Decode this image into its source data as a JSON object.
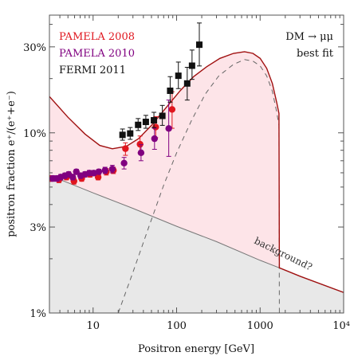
{
  "chart_data": {
    "type": "scatter",
    "xlabel": "Positron energy [GeV]",
    "ylabel": "positron fraction  e⁺/(e⁺+e⁻)",
    "x_scale": "log",
    "y_scale": "log",
    "xlim": [
      3,
      10000
    ],
    "ylim": [
      0.01,
      0.45
    ],
    "x_ticks": [
      {
        "value": 10,
        "label": "10"
      },
      {
        "value": 100,
        "label": "100"
      },
      {
        "value": 1000,
        "label": "1000"
      },
      {
        "value": 10000,
        "label": "10⁴"
      }
    ],
    "y_ticks": [
      {
        "value": 0.01,
        "label": "1%"
      },
      {
        "value": 0.03,
        "label": "3%"
      },
      {
        "value": 0.1,
        "label": "10%"
      },
      {
        "value": 0.3,
        "label": "30%"
      }
    ],
    "grid": false,
    "legend_position": "top-left",
    "legend": [
      {
        "label": "PAMELA 2008",
        "color": "#e0161e"
      },
      {
        "label": "PAMELA 2010",
        "color": "#800080"
      },
      {
        "label": "FERMI 2011",
        "color": "#111111"
      }
    ],
    "annotations": {
      "model_line1": "DM → μμ",
      "model_line2": "best fit",
      "background_label": "background?"
    },
    "colors": {
      "pamela2008": "#e0161e",
      "pamela2010": "#800080",
      "fermi": "#111111",
      "total_curve": "#a01010",
      "signal_fill": "#fde4e8",
      "background_fill": "#e8e8e8",
      "background_line": "#777777"
    },
    "series": [
      {
        "name": "PAMELA 2008",
        "points": [
          {
            "x": 3.1,
            "y": 0.0558,
            "lo": 0.0538,
            "hi": 0.0578
          },
          {
            "x": 3.9,
            "y": 0.0549,
            "lo": 0.0529,
            "hi": 0.0569
          },
          {
            "x": 4.8,
            "y": 0.0568,
            "lo": 0.0548,
            "hi": 0.0588
          },
          {
            "x": 5.9,
            "y": 0.0539,
            "lo": 0.0519,
            "hi": 0.0559
          },
          {
            "x": 7.3,
            "y": 0.0558,
            "lo": 0.0538,
            "hi": 0.0578
          },
          {
            "x": 9.2,
            "y": 0.0588,
            "lo": 0.0568,
            "hi": 0.0608
          },
          {
            "x": 11.5,
            "y": 0.0568,
            "lo": 0.0548,
            "hi": 0.0588
          },
          {
            "x": 14.4,
            "y": 0.0608,
            "lo": 0.0583,
            "hi": 0.0633
          },
          {
            "x": 17.5,
            "y": 0.0619,
            "lo": 0.0594,
            "hi": 0.0644
          },
          {
            "x": 24.4,
            "y": 0.0817,
            "lo": 0.075,
            "hi": 0.088
          },
          {
            "x": 36.5,
            "y": 0.0864,
            "lo": 0.0775,
            "hi": 0.096
          },
          {
            "x": 56.2,
            "y": 0.1076,
            "lo": 0.094,
            "hi": 0.123
          },
          {
            "x": 88.3,
            "y": 0.1348,
            "lo": 0.106,
            "hi": 0.169
          }
        ]
      },
      {
        "name": "PAMELA 2010",
        "points": [
          {
            "x": 3.3,
            "y": 0.0558,
            "lo": 0.0538,
            "hi": 0.0578
          },
          {
            "x": 3.7,
            "y": 0.0558,
            "lo": 0.0538,
            "hi": 0.0578
          },
          {
            "x": 4.1,
            "y": 0.0568,
            "lo": 0.0548,
            "hi": 0.0588
          },
          {
            "x": 4.6,
            "y": 0.0578,
            "lo": 0.0558,
            "hi": 0.0598
          },
          {
            "x": 5.1,
            "y": 0.0588,
            "lo": 0.0568,
            "hi": 0.0608
          },
          {
            "x": 5.7,
            "y": 0.0568,
            "lo": 0.0548,
            "hi": 0.0588
          },
          {
            "x": 6.3,
            "y": 0.0608,
            "lo": 0.0588,
            "hi": 0.0628
          },
          {
            "x": 7.1,
            "y": 0.0578,
            "lo": 0.0558,
            "hi": 0.0598
          },
          {
            "x": 8.0,
            "y": 0.0588,
            "lo": 0.0568,
            "hi": 0.0608
          },
          {
            "x": 9.0,
            "y": 0.0598,
            "lo": 0.0578,
            "hi": 0.0618
          },
          {
            "x": 10.2,
            "y": 0.0598,
            "lo": 0.0578,
            "hi": 0.0618
          },
          {
            "x": 11.7,
            "y": 0.0608,
            "lo": 0.0588,
            "hi": 0.0628
          },
          {
            "x": 13.9,
            "y": 0.0619,
            "lo": 0.0594,
            "hi": 0.0644
          },
          {
            "x": 17.0,
            "y": 0.063,
            "lo": 0.06,
            "hi": 0.066
          },
          {
            "x": 23.5,
            "y": 0.0679,
            "lo": 0.063,
            "hi": 0.073
          },
          {
            "x": 37.5,
            "y": 0.0775,
            "lo": 0.07,
            "hi": 0.086
          },
          {
            "x": 54.4,
            "y": 0.0928,
            "lo": 0.081,
            "hi": 0.106
          },
          {
            "x": 80.5,
            "y": 0.1057,
            "lo": 0.074,
            "hi": 0.152
          }
        ]
      },
      {
        "name": "FERMI 2011",
        "points": [
          {
            "x": 22.5,
            "y": 0.0974,
            "lo": 0.091,
            "hi": 0.105
          },
          {
            "x": 27.8,
            "y": 0.0992,
            "lo": 0.092,
            "hi": 0.107
          },
          {
            "x": 34.6,
            "y": 0.1107,
            "lo": 0.103,
            "hi": 0.12
          },
          {
            "x": 42.8,
            "y": 0.115,
            "lo": 0.106,
            "hi": 0.125
          },
          {
            "x": 53.5,
            "y": 0.1174,
            "lo": 0.107,
            "hi": 0.13
          },
          {
            "x": 67.5,
            "y": 0.1242,
            "lo": 0.11,
            "hi": 0.142
          },
          {
            "x": 83.7,
            "y": 0.1712,
            "lo": 0.148,
            "hi": 0.205
          },
          {
            "x": 105.0,
            "y": 0.2074,
            "lo": 0.176,
            "hi": 0.247
          },
          {
            "x": 134.0,
            "y": 0.1879,
            "lo": 0.152,
            "hi": 0.231
          },
          {
            "x": 153.0,
            "y": 0.2358,
            "lo": 0.198,
            "hi": 0.288
          },
          {
            "x": 187.0,
            "y": 0.3084,
            "lo": 0.235,
            "hi": 0.407
          }
        ]
      }
    ],
    "curves": {
      "background": [
        {
          "x": 3,
          "y": 0.0581
        },
        {
          "x": 10,
          "y": 0.0464
        },
        {
          "x": 30,
          "y": 0.0381
        },
        {
          "x": 100,
          "y": 0.0303
        },
        {
          "x": 300,
          "y": 0.0249
        },
        {
          "x": 1000,
          "y": 0.0196
        },
        {
          "x": 1700,
          "y": 0.0178
        },
        {
          "x": 3000,
          "y": 0.016
        },
        {
          "x": 10000,
          "y": 0.013
        }
      ],
      "total": [
        {
          "x": 3,
          "y": 0.159
        },
        {
          "x": 5,
          "y": 0.122
        },
        {
          "x": 8,
          "y": 0.0985
        },
        {
          "x": 12,
          "y": 0.0851
        },
        {
          "x": 17,
          "y": 0.0816
        },
        {
          "x": 25,
          "y": 0.0842
        },
        {
          "x": 35,
          "y": 0.0928
        },
        {
          "x": 50,
          "y": 0.11
        },
        {
          "x": 75,
          "y": 0.138
        },
        {
          "x": 110,
          "y": 0.171
        },
        {
          "x": 160,
          "y": 0.205
        },
        {
          "x": 230,
          "y": 0.233
        },
        {
          "x": 330,
          "y": 0.259
        },
        {
          "x": 480,
          "y": 0.276
        },
        {
          "x": 650,
          "y": 0.282
        },
        {
          "x": 820,
          "y": 0.276
        },
        {
          "x": 1000,
          "y": 0.259
        },
        {
          "x": 1200,
          "y": 0.228
        },
        {
          "x": 1400,
          "y": 0.188
        },
        {
          "x": 1580,
          "y": 0.147
        },
        {
          "x": 1680,
          "y": 0.128
        },
        {
          "x": 1700,
          "y": 0.0178
        },
        {
          "x": 3000,
          "y": 0.016
        },
        {
          "x": 10000,
          "y": 0.013
        }
      ],
      "signal": [
        {
          "x": 20,
          "y": 0.01
        },
        {
          "x": 30,
          "y": 0.0168
        },
        {
          "x": 45,
          "y": 0.0288
        },
        {
          "x": 70,
          "y": 0.0512
        },
        {
          "x": 100,
          "y": 0.0774
        },
        {
          "x": 150,
          "y": 0.1166
        },
        {
          "x": 220,
          "y": 0.164
        },
        {
          "x": 320,
          "y": 0.207
        },
        {
          "x": 480,
          "y": 0.24
        },
        {
          "x": 650,
          "y": 0.255
        },
        {
          "x": 820,
          "y": 0.25
        },
        {
          "x": 1000,
          "y": 0.235
        },
        {
          "x": 1200,
          "y": 0.207
        },
        {
          "x": 1400,
          "y": 0.17
        },
        {
          "x": 1580,
          "y": 0.13
        },
        {
          "x": 1680,
          "y": 0.11
        },
        {
          "x": 1700,
          "y": 0.01
        }
      ]
    }
  }
}
